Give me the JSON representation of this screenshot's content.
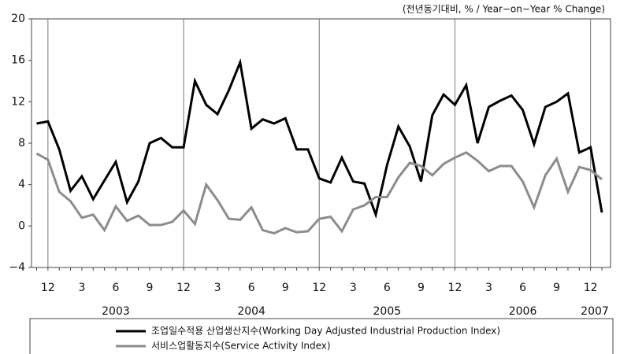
{
  "chart_data": {
    "type": "line",
    "unit_label": "(전년동기대비, % / Year−on−Year % Change)",
    "categories": [
      null,
      "12",
      null,
      null,
      "3",
      null,
      null,
      "6",
      null,
      null,
      "9",
      null,
      null,
      "12",
      null,
      null,
      "3",
      null,
      null,
      "6",
      null,
      null,
      "9",
      null,
      null,
      "12",
      null,
      null,
      "3",
      null,
      null,
      "6",
      null,
      null,
      "9",
      null,
      null,
      "12",
      null,
      null,
      "3",
      null,
      null,
      "6",
      null,
      null,
      "9",
      null,
      null,
      "12",
      null
    ],
    "year_labels": [
      "2003",
      "2004",
      "2005",
      "2006",
      "2007"
    ],
    "series": [
      {
        "name": "조업일수적용 산업생산지수(Working Day Adjusted Industrial Production Index)",
        "color": "#000000",
        "values": [
          9.9,
          10.1,
          7.4,
          3.4,
          4.8,
          2.6,
          4.4,
          6.2,
          2.3,
          4.3,
          8.0,
          8.5,
          7.6,
          7.6,
          14.0,
          11.7,
          10.8,
          13.1,
          15.8,
          9.4,
          10.3,
          9.9,
          10.4,
          7.4,
          7.4,
          4.6,
          4.2,
          6.6,
          4.3,
          4.1,
          1.1,
          5.9,
          9.6,
          7.7,
          4.3,
          10.7,
          12.7,
          11.7,
          13.6,
          8.0,
          11.5,
          12.1,
          12.6,
          11.2,
          7.9,
          11.5,
          12.0,
          12.8,
          7.1,
          7.6,
          1.3
        ]
      },
      {
        "name": "서비스업활동지수(Service Activity Index)",
        "color": "#8c8c8c",
        "values": [
          7.0,
          6.4,
          3.3,
          2.4,
          0.8,
          1.1,
          -0.4,
          1.9,
          0.5,
          1.0,
          0.1,
          0.1,
          0.4,
          1.5,
          0.2,
          4.0,
          2.5,
          0.7,
          0.6,
          1.8,
          -0.4,
          -0.7,
          -0.2,
          -0.6,
          -0.5,
          0.7,
          0.9,
          -0.5,
          1.6,
          2.0,
          2.8,
          2.8,
          4.7,
          6.1,
          5.8,
          4.9,
          6.0,
          6.6,
          7.1,
          6.3,
          5.3,
          5.8,
          5.8,
          4.3,
          1.8,
          4.9,
          6.5,
          3.3,
          5.7,
          5.4,
          4.5
        ]
      }
    ],
    "ylim": [
      -4,
      20
    ],
    "yticks": [
      {
        "value": -4,
        "label": "−4"
      },
      0,
      4,
      8,
      12,
      16,
      20
    ],
    "grid": false
  }
}
